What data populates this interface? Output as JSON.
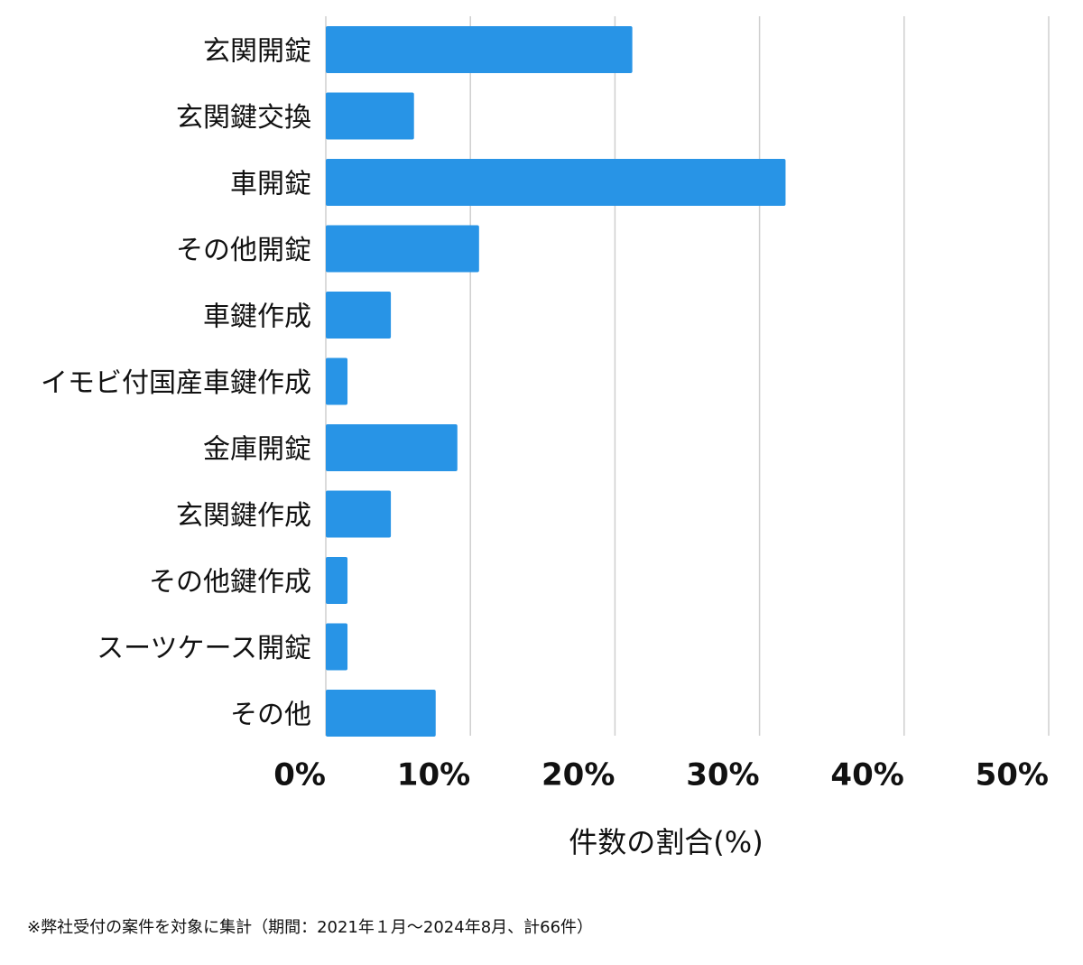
{
  "chart_data": {
    "type": "barh",
    "x_label": "件数の割合(%)",
    "note": "※弊社受付の案件を対象に集計（期間：2021年１月〜2024年8月、計66件）",
    "categories": [
      "玄関開錠",
      "玄関鍵交換",
      "車開錠",
      "その他開錠",
      "車鍵作成",
      "イモビ付国産車鍵作成",
      "金庫開錠",
      "玄関鍵作成",
      "その他鍵作成",
      "スーツケース開錠",
      "その他"
    ],
    "values": [
      21.2,
      6.1,
      31.8,
      10.6,
      4.5,
      1.5,
      9.1,
      4.5,
      1.5,
      1.5,
      7.6
    ],
    "color": "#2894e6",
    "xlim": [
      0,
      50
    ],
    "xticks": [
      {
        "value": 0,
        "label": "0%"
      },
      {
        "value": 10,
        "label": "10%"
      },
      {
        "value": 20,
        "label": "20%"
      },
      {
        "value": 30,
        "label": "30%"
      },
      {
        "value": 40,
        "label": "40%"
      },
      {
        "value": 50,
        "label": "50%"
      }
    ],
    "grid": true
  }
}
